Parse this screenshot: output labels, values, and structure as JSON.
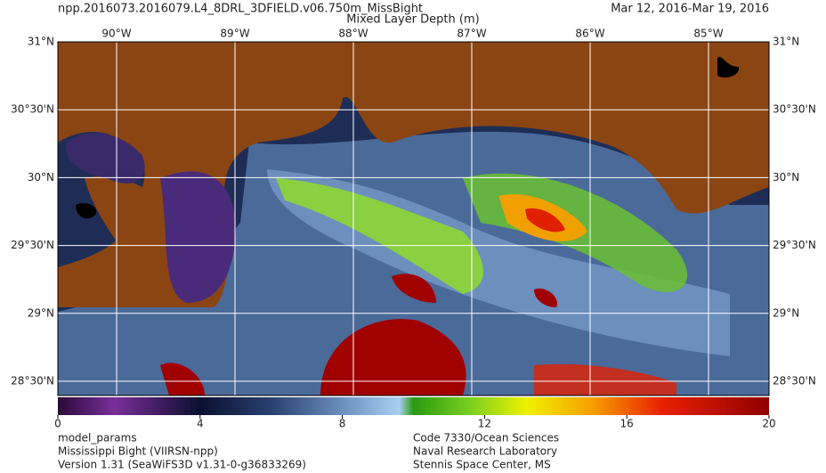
{
  "header": {
    "title": "npp.2016073.2016079.L4_8DRL_3DFIELD.v06.750m_MissBight",
    "date": "Mar 12, 2016-Mar 19, 2016",
    "subtitle": "Mixed Layer Depth (m)"
  },
  "map": {
    "lon_labels": [
      "90°W",
      "89°W",
      "88°W",
      "87°W",
      "86°W",
      "85°W"
    ],
    "lat_labels": [
      "31°N",
      "30°30'N",
      "30°N",
      "29°30'N",
      "29°N",
      "28°30'N"
    ]
  },
  "colorbar": {
    "lim": [
      0,
      20
    ],
    "ticks": [
      0,
      4,
      8,
      12,
      16,
      20
    ]
  },
  "footer": {
    "left": [
      "model_params",
      "Mississippi Bight (VIIRSN-npp)",
      "Version 1.31 (SeaWiFS3D v1.31-0-g36833269)"
    ],
    "right": [
      "Code 7330/Ocean Sciences",
      "Naval Research Laboratory",
      "Stennis Space Center, MS"
    ]
  }
}
